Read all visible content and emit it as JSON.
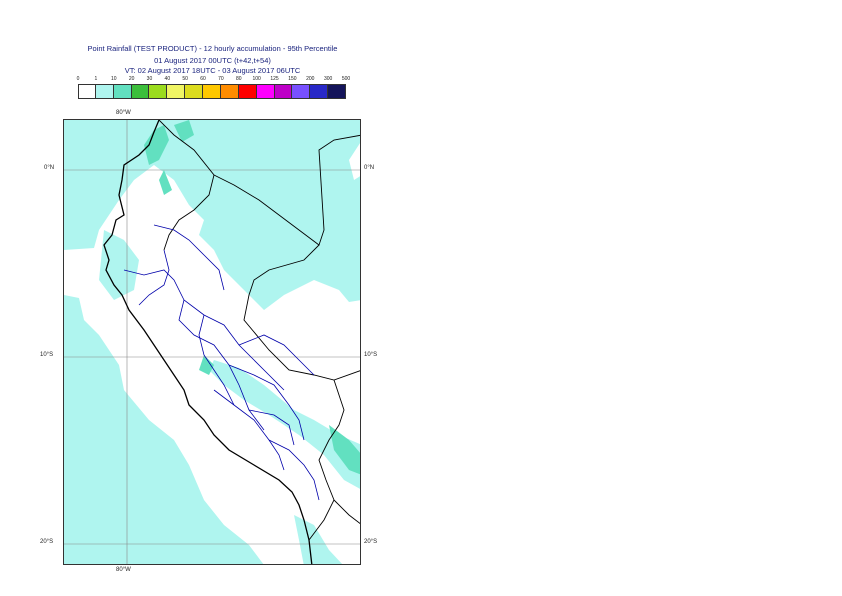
{
  "header": {
    "line1": "Point Rainfall (TEST PRODUCT) - 12 hourly accumulation - 95th Percentile",
    "line2": "01 August 2017 00UTC (t+42,t+54)",
    "line3": "VT: 02 August 2017 18UTC - 03 August 2017 06UTC"
  },
  "legend": {
    "ticks": [
      "0",
      "1",
      "10",
      "20",
      "30",
      "40",
      "50",
      "60",
      "70",
      "80",
      "100",
      "125",
      "150",
      "200",
      "300",
      "500"
    ],
    "colors": [
      "#ffffff",
      "#aff5ef",
      "#62e0c0",
      "#3cbf3c",
      "#9bdc1e",
      "#f0f564",
      "#dcdc1e",
      "#ffc800",
      "#ff8c00",
      "#ff0000",
      "#ff00ff",
      "#be00c8",
      "#7850ff",
      "#2828c8",
      "#14145a"
    ]
  },
  "map": {
    "lat_labels": [
      "0°N",
      "10°S",
      "20°S"
    ],
    "lon_label_top": "80°W",
    "lon_label_bottom": "80°W",
    "colors": {
      "light": "#aff5ef",
      "medium": "#62e0c0",
      "coast": "#000000",
      "borders": "#0000aa",
      "grid": "#888888"
    }
  }
}
